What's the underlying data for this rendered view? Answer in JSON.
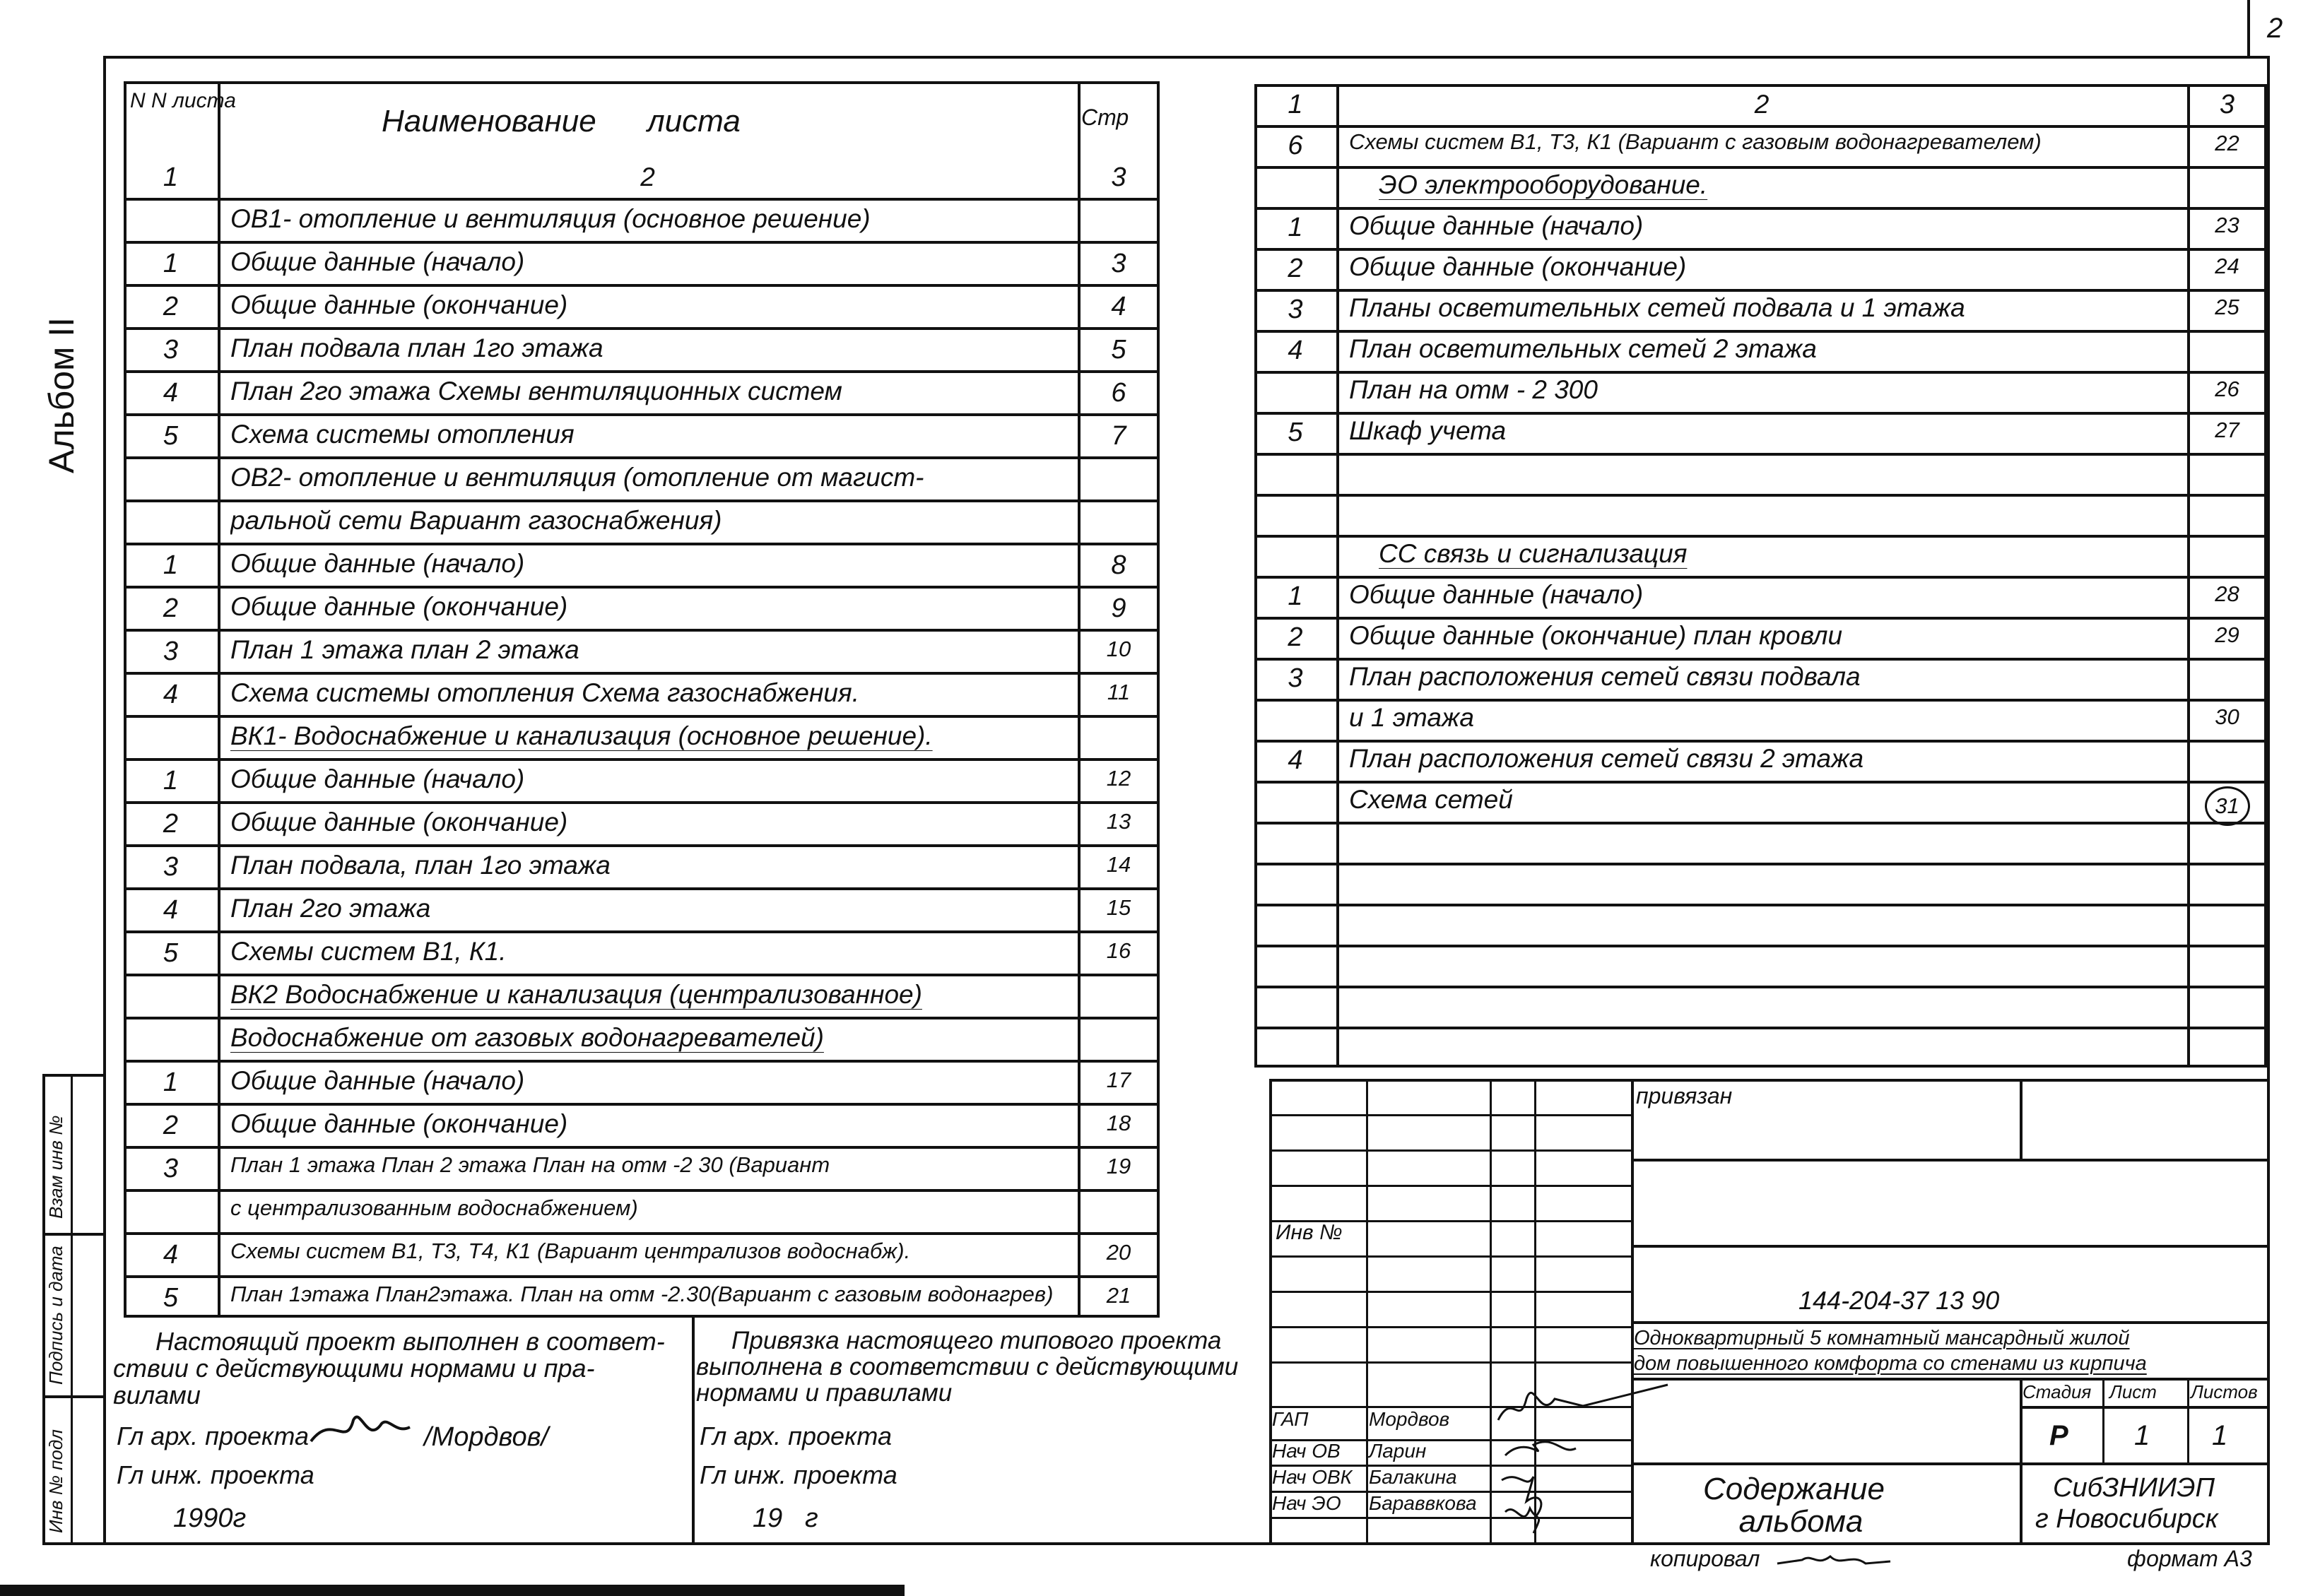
{
  "page_number": "2",
  "album_label": "Альбом II",
  "margin_stamps": {
    "replacement_inv": "Взам инв №",
    "signature_date": "Подпись и дата",
    "original_inv": "Инв № подл"
  },
  "left_table": {
    "header": {
      "num": "N N листа",
      "name": "Наименование листа",
      "page": "Стр"
    },
    "rows": [
      {
        "num": "1",
        "name": "2",
        "page": "3",
        "center": true
      },
      {
        "num": "",
        "name": "ОВ1- отопление и вентиляция (основное решение)",
        "page": ""
      },
      {
        "num": "1",
        "name": "Общие данные (начало)",
        "page": "3"
      },
      {
        "num": "2",
        "name": "Общие данные (окончание)",
        "page": "4"
      },
      {
        "num": "3",
        "name": "План подвала   план 1го этажа",
        "page": "5"
      },
      {
        "num": "4",
        "name": "План 2го этажа  Схемы вентиляционных систем",
        "page": "6"
      },
      {
        "num": "5",
        "name": "Схема системы отопления",
        "page": "7"
      },
      {
        "num": "",
        "name": "ОВ2- отопление и вентиляция (отопление от магист-",
        "page": ""
      },
      {
        "num": "",
        "name": "ральной сети  Вариант  газоснабжения)",
        "page": ""
      },
      {
        "num": "1",
        "name": "Общие данные (начало)",
        "page": "8"
      },
      {
        "num": "2",
        "name": "Общие данные (окончание)",
        "page": "9"
      },
      {
        "num": "3",
        "name": "План 1 этажа        план 2 этажа",
        "page": "10"
      },
      {
        "num": "4",
        "name": "Схема системы отопления Схема газоснабжения.",
        "page": "11"
      },
      {
        "num": "",
        "name": "ВК1- Водоснабжение и канализация (основное решение).",
        "page": "",
        "heading": true
      },
      {
        "num": "1",
        "name": "Общие данные  (начало)",
        "page": "12"
      },
      {
        "num": "2",
        "name": "Общие данные  (окончание)",
        "page": "13"
      },
      {
        "num": "3",
        "name": "План подвала,  план 1го этажа",
        "page": "14"
      },
      {
        "num": "4",
        "name": "План 2го этажа",
        "page": "15"
      },
      {
        "num": "5",
        "name": "Схемы  систем В1, К1.",
        "page": "16"
      },
      {
        "num": "",
        "name": "ВК2 Водоснабжение и канализация (централизованное)",
        "page": "",
        "heading": true
      },
      {
        "num": "",
        "name": "Водоснабжение  от газовых  водонагревателей)",
        "page": "",
        "heading": true
      },
      {
        "num": "1",
        "name": "Общие данные  (начало)",
        "page": "17"
      },
      {
        "num": "2",
        "name": "Общие данные  (окончание)",
        "page": "18"
      },
      {
        "num": "3",
        "name": "План 1 этажа  План 2 этажа  План на отм -2 30 (Вариант",
        "page": "19",
        "small": true
      },
      {
        "num": "",
        "name": "с централизованным водоснабжением)",
        "page": "",
        "small": true
      },
      {
        "num": "4",
        "name": "Схемы систем В1, Т3, Т4, К1 (Вариант централизов водоснабж).",
        "page": "20",
        "small": true
      },
      {
        "num": "5",
        "name": "План 1этажа План2этажа. План на отм -2.30(Вариант с газовым водонагрев)",
        "page": "21",
        "small": true
      }
    ]
  },
  "right_table": {
    "rows": [
      {
        "num": "1",
        "name": "2",
        "page": "3",
        "center": true
      },
      {
        "num": "6",
        "name": "Схемы систем В1, Т3, К1 (Вариант с газовым водонагревателем)",
        "page": "22",
        "small": true
      },
      {
        "num": "",
        "name": "ЭО  электрооборудование.",
        "page": "",
        "heading": true
      },
      {
        "num": "1",
        "name": "Общие  данные (начало)",
        "page": "23"
      },
      {
        "num": "2",
        "name": "Общие  данные  (окончание)",
        "page": "24"
      },
      {
        "num": "3",
        "name": "Планы осветительных  сетей подвала  и 1 этажа",
        "page": "25"
      },
      {
        "num": "4",
        "name": "План осветительных  сетей 2 этажа",
        "page": ""
      },
      {
        "num": "",
        "name": "План на  отм - 2 300",
        "page": "26"
      },
      {
        "num": "5",
        "name": "Шкаф учета",
        "page": "27"
      },
      {
        "num": "",
        "name": "",
        "page": ""
      },
      {
        "num": "",
        "name": "",
        "page": ""
      },
      {
        "num": "",
        "name": "СС  связь  и  сигнализация",
        "page": "",
        "heading": true
      },
      {
        "num": "1",
        "name": "Общие  данные  (начало)",
        "page": "28"
      },
      {
        "num": "2",
        "name": "Общие  данные  (окончание) план кровли",
        "page": "29"
      },
      {
        "num": "3",
        "name": "План  расположения  сетей  связи  подвала",
        "page": ""
      },
      {
        "num": "",
        "name": "и 1 этажа",
        "page": "30"
      },
      {
        "num": "4",
        "name": "План  расположения  сетей  связи 2 этажа",
        "page": ""
      },
      {
        "num": "",
        "name": "Схема  сетей",
        "page": "31",
        "circled": true
      },
      {
        "num": "",
        "name": "",
        "page": ""
      },
      {
        "num": "",
        "name": "",
        "page": ""
      },
      {
        "num": "",
        "name": "",
        "page": ""
      },
      {
        "num": "",
        "name": "",
        "page": ""
      },
      {
        "num": "",
        "name": "",
        "page": ""
      },
      {
        "num": "",
        "name": "",
        "page": ""
      }
    ]
  },
  "notes": {
    "left": {
      "lines": [
        "Настоящий  проект выполнен в соответ-",
        "ствии с действующими нормами и пра-",
        "вилами"
      ],
      "chief_architect": "Гл арх. проекта",
      "chief_architect_name": "/Мордвов/",
      "chief_engineer": "Гл инж. проекта",
      "year": "1990г"
    },
    "right": {
      "lines": [
        "Привязка настоящего типового проекта",
        "выполнена в  соответствии с действующими",
        "нормами и правилами"
      ],
      "chief_architect": "Гл арх. проекта",
      "chief_engineer": "Гл инж. проекта",
      "year": "19   г"
    }
  },
  "title_block": {
    "bound_label": "привязан",
    "inv_label": "Инв №",
    "code": "144-204-37 13 90",
    "description": [
      "Одноквартирный 5 комнатный мансардный жилой",
      "дом повышенного комфорта со стенами из кирпича"
    ],
    "stage_header": "Стадия",
    "sheet_header": "Лист",
    "sheets_header": "Листов",
    "stage": "Р",
    "sheet": "1",
    "sheets": "1",
    "sheet_title": [
      "Содержание",
      "альбома"
    ],
    "organization": [
      "СибЗНИИЭП",
      "г Новосибирск"
    ],
    "staff": [
      {
        "role": "ГАП",
        "name": "Мордвов"
      },
      {
        "role": "Нач ОВ",
        "name": "Ларин"
      },
      {
        "role": "Нач ОВК",
        "name": "Балакина"
      },
      {
        "role": "Нач ЭО",
        "name": "Бараввкова"
      }
    ]
  },
  "footer": {
    "copied_by": "копировал",
    "format": "формат А3"
  },
  "colors": {
    "ink": "#111111",
    "paper": "#ffffff"
  }
}
